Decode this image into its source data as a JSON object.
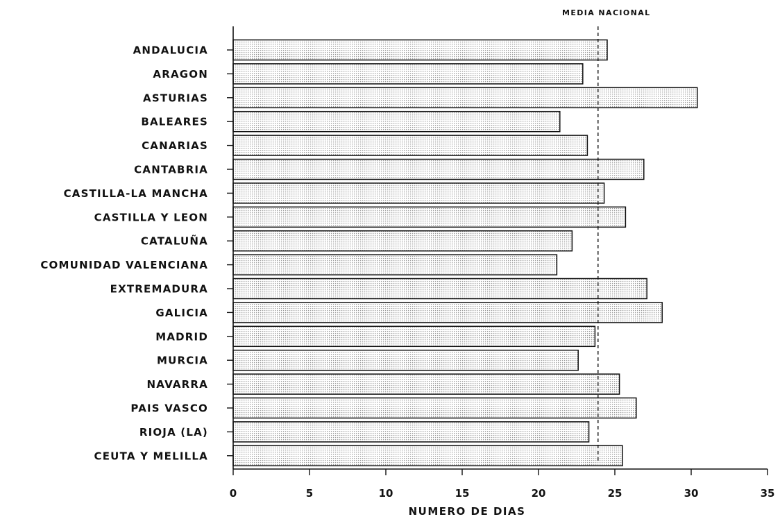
{
  "chart_data": {
    "type": "bar",
    "orientation": "horizontal",
    "categories": [
      "ANDALUCIA",
      "ARAGON",
      "ASTURIAS",
      "BALEARES",
      "CANARIAS",
      "CANTABRIA",
      "CASTILLA-LA MANCHA",
      "CASTILLA Y LEON",
      "CATALUÑA",
      "COMUNIDAD VALENCIANA",
      "EXTREMADURA",
      "GALICIA",
      "MADRID",
      "MURCIA",
      "NAVARRA",
      "PAIS VASCO",
      "RIOJA (LA)",
      "CEUTA Y MELILLA"
    ],
    "values": [
      24.5,
      22.9,
      30.4,
      21.4,
      23.2,
      26.9,
      24.3,
      25.7,
      22.2,
      21.2,
      27.1,
      28.1,
      23.7,
      22.6,
      25.3,
      26.4,
      23.3,
      25.5
    ],
    "title": "",
    "xlabel": "NUMERO DE DIAS",
    "ylabel": "",
    "xlim": [
      0,
      35
    ],
    "xticks": [
      "0",
      "5",
      "10",
      "15",
      "20",
      "25",
      "30",
      "35"
    ],
    "reference_line": {
      "label": "MEDIA NACIONAL",
      "value": 23.9,
      "style": "dashed"
    },
    "grid": false,
    "legend": "none",
    "bar_fill": "#d9d9d9",
    "bar_stroke": "#111111"
  }
}
